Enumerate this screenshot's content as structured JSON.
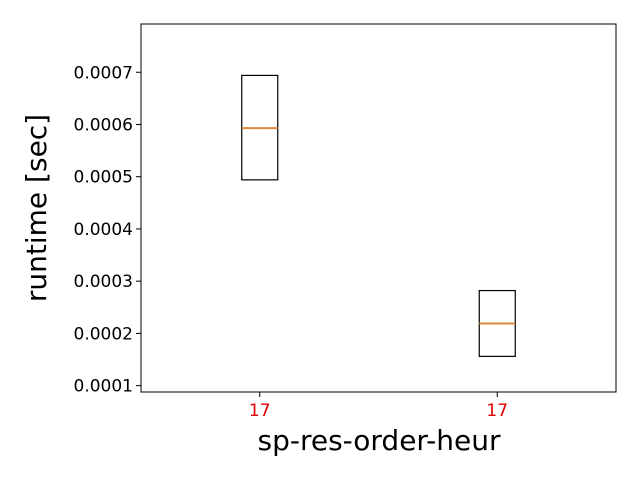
{
  "chart_data": {
    "type": "box",
    "xlabel": "sp-res-order-heur",
    "ylabel": "runtime [sec]",
    "ylim": [
      8.78e-05,
      0.0007924
    ],
    "yticks": [
      {
        "value": 0.0001,
        "label": "0.0001"
      },
      {
        "value": 0.0002,
        "label": "0.0002"
      },
      {
        "value": 0.0003,
        "label": "0.0003"
      },
      {
        "value": 0.0004,
        "label": "0.0004"
      },
      {
        "value": 0.0005,
        "label": "0.0005"
      },
      {
        "value": 0.0006,
        "label": "0.0006"
      },
      {
        "value": 0.0007,
        "label": "0.0007"
      }
    ],
    "categories": [
      "17",
      "17"
    ],
    "category_label_color": "#e00000",
    "boxes": [
      {
        "q1": 0.000494,
        "median": 0.000593,
        "q3": 0.000694
      },
      {
        "q1": 0.000156,
        "median": 0.000219,
        "q3": 0.000282
      }
    ],
    "grid": false,
    "colors": {
      "box_edge": "#000000",
      "median": "#e08a3c"
    }
  }
}
